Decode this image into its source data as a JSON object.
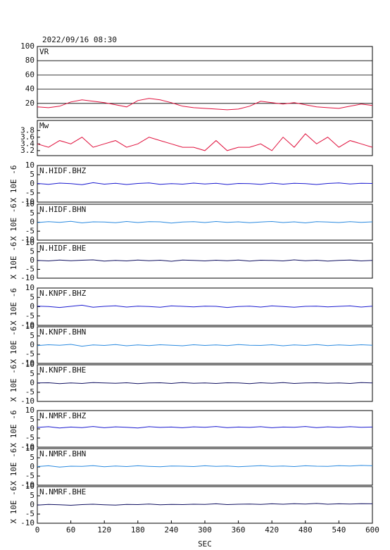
{
  "chart_data": [
    {
      "type": "line",
      "title": "2022/09/16 08:30",
      "xlim": [
        0,
        600
      ],
      "ylim": [
        0,
        100
      ],
      "yticks": [
        20,
        40,
        60,
        80,
        100
      ],
      "grid": true,
      "x": [
        0,
        20,
        40,
        60,
        80,
        100,
        120,
        140,
        160,
        180,
        200,
        220,
        240,
        260,
        280,
        300,
        320,
        340,
        360,
        380,
        400,
        420,
        440,
        460,
        480,
        500,
        520,
        540,
        560,
        580,
        600
      ],
      "series": [
        {
          "name": "VR",
          "color": "#e0103c",
          "values": [
            15,
            14,
            16,
            22,
            25,
            23,
            21,
            18,
            15,
            24,
            27,
            25,
            21,
            16,
            14,
            13,
            12,
            11,
            12,
            16,
            23,
            21,
            19,
            21,
            18,
            15,
            14,
            13,
            16,
            19,
            17
          ]
        }
      ]
    },
    {
      "type": "line",
      "xlim": [
        0,
        600
      ],
      "ylim": [
        3.05,
        4.1
      ],
      "yticks": [
        3.2,
        3.4,
        3.6,
        3.8
      ],
      "x": [
        0,
        20,
        40,
        60,
        80,
        100,
        120,
        140,
        160,
        180,
        200,
        220,
        240,
        260,
        280,
        300,
        320,
        340,
        360,
        380,
        400,
        420,
        440,
        460,
        480,
        500,
        520,
        540,
        560,
        580,
        600
      ],
      "series": [
        {
          "name": "Mw",
          "color": "#e0103c",
          "values": [
            3.4,
            3.3,
            3.5,
            3.4,
            3.6,
            3.3,
            3.4,
            3.5,
            3.3,
            3.4,
            3.6,
            3.5,
            3.4,
            3.3,
            3.3,
            3.2,
            3.5,
            3.2,
            3.3,
            3.3,
            3.4,
            3.2,
            3.6,
            3.3,
            3.7,
            3.4,
            3.6,
            3.3,
            3.5,
            3.4,
            3.3
          ]
        }
      ]
    },
    {
      "type": "line",
      "ylabel": "X 10E -6",
      "xlim": [
        0,
        600
      ],
      "ylim": [
        -10,
        10
      ],
      "yticks": [
        -10,
        -5,
        0,
        5,
        10
      ],
      "x": [
        0,
        20,
        40,
        60,
        80,
        100,
        120,
        140,
        160,
        180,
        200,
        220,
        240,
        260,
        280,
        300,
        320,
        340,
        360,
        380,
        400,
        420,
        440,
        460,
        480,
        500,
        520,
        540,
        560,
        580,
        600
      ],
      "series": [
        {
          "name": "N.HIDF.BHZ",
          "color": "#1a1ad0",
          "values": [
            0.2,
            -0.3,
            0.4,
            0.1,
            -0.5,
            0.6,
            -0.2,
            0.3,
            -0.4,
            0.2,
            0.5,
            -0.3,
            0.1,
            -0.2,
            0.4,
            -0.1,
            0.3,
            -0.4,
            0.2,
            0.1,
            -0.3,
            0.4,
            -0.2,
            0.3,
            0.1,
            -0.4,
            0.2,
            0.5,
            -0.1,
            0.3,
            0.2
          ]
        }
      ]
    },
    {
      "type": "line",
      "ylabel": "X 10E -6",
      "xlim": [
        0,
        600
      ],
      "ylim": [
        -10,
        10
      ],
      "yticks": [
        -10,
        -5,
        0,
        5,
        10
      ],
      "x": [
        0,
        20,
        40,
        60,
        80,
        100,
        120,
        140,
        160,
        180,
        200,
        220,
        240,
        260,
        280,
        300,
        320,
        340,
        360,
        380,
        400,
        420,
        440,
        460,
        480,
        500,
        520,
        540,
        560,
        580,
        600
      ],
      "series": [
        {
          "name": "N.HIDF.BHN",
          "color": "#2a8ae0",
          "values": [
            -0.2,
            0.3,
            -0.1,
            0.5,
            -0.4,
            0.2,
            0.1,
            -0.3,
            0.4,
            -0.2,
            0.3,
            0.2,
            -0.5,
            0.1,
            0.3,
            -0.2,
            0.4,
            -0.1,
            0.2,
            -0.3,
            0.1,
            0.4,
            -0.2,
            0.2,
            -0.4,
            0.3,
            0.1,
            -0.2,
            0.3,
            -0.1,
            0.2
          ]
        }
      ]
    },
    {
      "type": "line",
      "ylabel": "X 10E -6",
      "xlim": [
        0,
        600
      ],
      "ylim": [
        -10,
        10
      ],
      "yticks": [
        -10,
        -5,
        0,
        5,
        10
      ],
      "x": [
        0,
        20,
        40,
        60,
        80,
        100,
        120,
        140,
        160,
        180,
        200,
        220,
        240,
        260,
        280,
        300,
        320,
        340,
        360,
        380,
        400,
        420,
        440,
        460,
        480,
        500,
        520,
        540,
        560,
        580,
        600
      ],
      "series": [
        {
          "name": "N.HIDF.BHE",
          "color": "#101060",
          "values": [
            0.1,
            -0.2,
            0.3,
            -0.1,
            0.2,
            0.4,
            -0.3,
            0.1,
            -0.2,
            0.3,
            -0.1,
            0.2,
            -0.4,
            0.3,
            0.1,
            -0.2,
            0.2,
            -0.1,
            0.3,
            -0.3,
            0.2,
            0.1,
            -0.2,
            0.4,
            -0.1,
            0.2,
            -0.3,
            0.1,
            0.3,
            -0.2,
            0.1
          ]
        }
      ]
    },
    {
      "type": "line",
      "ylabel": "X 10E -6",
      "xlim": [
        0,
        600
      ],
      "ylim": [
        -10,
        10
      ],
      "yticks": [
        -10,
        -5,
        0,
        5,
        10
      ],
      "x": [
        0,
        20,
        40,
        60,
        80,
        100,
        120,
        140,
        160,
        180,
        200,
        220,
        240,
        260,
        280,
        300,
        320,
        340,
        360,
        380,
        400,
        420,
        440,
        460,
        480,
        500,
        520,
        540,
        560,
        580,
        600
      ],
      "series": [
        {
          "name": "N.KNPF.BHZ",
          "color": "#1a1ad0",
          "values": [
            0.3,
            0.1,
            -0.4,
            0.2,
            0.8,
            -0.3,
            0.2,
            0.5,
            -0.2,
            0.3,
            0.1,
            -0.3,
            0.4,
            0.2,
            -0.1,
            0.3,
            0.2,
            -0.4,
            0.1,
            0.3,
            -0.2,
            0.4,
            0.1,
            -0.3,
            0.2,
            0.3,
            -0.1,
            0.2,
            0.4,
            -0.2,
            0.3
          ]
        }
      ]
    },
    {
      "type": "line",
      "ylabel": "X 10E -6",
      "xlim": [
        0,
        600
      ],
      "ylim": [
        -10,
        10
      ],
      "yticks": [
        -10,
        -5,
        0,
        5,
        10
      ],
      "x": [
        0,
        20,
        40,
        60,
        80,
        100,
        120,
        140,
        160,
        180,
        200,
        220,
        240,
        260,
        280,
        300,
        320,
        340,
        360,
        380,
        400,
        420,
        440,
        460,
        480,
        500,
        520,
        540,
        560,
        580,
        600
      ],
      "series": [
        {
          "name": "N.KNPF.BHN",
          "color": "#2a8ae0",
          "values": [
            -0.3,
            0.2,
            -0.1,
            0.4,
            -0.6,
            0.1,
            -0.2,
            0.3,
            -0.4,
            0.1,
            -0.3,
            0.2,
            -0.1,
            -0.4,
            0.2,
            -0.2,
            0.1,
            -0.3,
            0.3,
            -0.1,
            -0.2,
            0.2,
            -0.4,
            0.1,
            -0.2,
            0.3,
            -0.3,
            0.1,
            -0.2,
            0.2,
            -0.1
          ]
        }
      ]
    },
    {
      "type": "line",
      "ylabel": "X 10E -6",
      "xlim": [
        0,
        600
      ],
      "ylim": [
        -10,
        10
      ],
      "yticks": [
        -10,
        -5,
        0,
        5,
        10
      ],
      "x": [
        0,
        20,
        40,
        60,
        80,
        100,
        120,
        140,
        160,
        180,
        200,
        220,
        240,
        260,
        280,
        300,
        320,
        340,
        360,
        380,
        400,
        420,
        440,
        460,
        480,
        500,
        520,
        540,
        560,
        580,
        600
      ],
      "series": [
        {
          "name": "N.KNPF.BHE",
          "color": "#101060",
          "values": [
            0.1,
            0.2,
            -0.3,
            0.1,
            -0.2,
            0.3,
            0.1,
            -0.1,
            0.2,
            -0.3,
            0.1,
            0.2,
            -0.2,
            0.3,
            -0.1,
            0.1,
            -0.2,
            0.2,
            0.1,
            -0.3,
            0.2,
            -0.1,
            0.3,
            -0.2,
            0.1,
            0.2,
            -0.1,
            0.1,
            -0.2,
            0.3,
            0.1
          ]
        }
      ]
    },
    {
      "type": "line",
      "ylabel": "X 10E -6",
      "xlim": [
        0,
        600
      ],
      "ylim": [
        -10,
        10
      ],
      "yticks": [
        -10,
        -5,
        0,
        5,
        10
      ],
      "x": [
        0,
        20,
        40,
        60,
        80,
        100,
        120,
        140,
        160,
        180,
        200,
        220,
        240,
        260,
        280,
        300,
        320,
        340,
        360,
        380,
        400,
        420,
        440,
        460,
        480,
        500,
        520,
        540,
        560,
        580,
        600
      ],
      "series": [
        {
          "name": "N.NMRF.BHZ",
          "color": "#1a1ad0",
          "values": [
            0.8,
            1.2,
            0.5,
            1.0,
            0.7,
            1.3,
            0.6,
            1.1,
            0.9,
            0.5,
            1.2,
            0.8,
            1.0,
            0.6,
            1.1,
            0.9,
            1.3,
            0.7,
            1.0,
            0.8,
            1.2,
            0.6,
            1.0,
            0.9,
            1.3,
            0.7,
            1.1,
            0.8,
            1.2,
            0.9,
            1.0
          ]
        }
      ]
    },
    {
      "type": "line",
      "ylabel": "X 10E -6",
      "xlim": [
        0,
        600
      ],
      "ylim": [
        -10,
        10
      ],
      "yticks": [
        -10,
        -5,
        0,
        5,
        10
      ],
      "x": [
        0,
        20,
        40,
        60,
        80,
        100,
        120,
        140,
        160,
        180,
        200,
        220,
        240,
        260,
        280,
        300,
        320,
        340,
        360,
        380,
        400,
        420,
        440,
        460,
        480,
        500,
        520,
        540,
        560,
        580,
        600
      ],
      "series": [
        {
          "name": "N.NMRF.BHN",
          "color": "#2a8ae0",
          "values": [
            0.2,
            0.6,
            -0.1,
            0.4,
            0.3,
            0.7,
            0.1,
            0.5,
            0.2,
            0.6,
            0.3,
            0.1,
            0.5,
            0.4,
            0.2,
            0.6,
            0.3,
            0.5,
            0.1,
            0.4,
            0.7,
            0.3,
            0.5,
            0.2,
            0.6,
            0.4,
            0.3,
            0.7,
            0.5,
            0.8,
            0.6
          ]
        }
      ]
    },
    {
      "type": "line",
      "ylabel": "X 10E -6",
      "xlabel": "SEC",
      "xlim": [
        0,
        600
      ],
      "ylim": [
        -10,
        10
      ],
      "yticks": [
        -10,
        -5,
        0,
        5,
        10
      ],
      "xticks": [
        0,
        60,
        120,
        180,
        240,
        300,
        360,
        420,
        480,
        540,
        600
      ],
      "x": [
        0,
        20,
        40,
        60,
        80,
        100,
        120,
        140,
        160,
        180,
        200,
        220,
        240,
        260,
        280,
        300,
        320,
        340,
        360,
        380,
        400,
        420,
        440,
        460,
        480,
        500,
        520,
        540,
        560,
        580,
        600
      ],
      "series": [
        {
          "name": "N.NMRF.BHE",
          "color": "#101060",
          "values": [
            -0.1,
            0.3,
            0.1,
            -0.2,
            0.2,
            0.4,
            0.1,
            -0.1,
            0.3,
            0.2,
            0.5,
            0.1,
            0.3,
            0.2,
            0.4,
            0.3,
            0.6,
            0.2,
            0.4,
            0.5,
            0.3,
            0.6,
            0.4,
            0.7,
            0.5,
            0.8,
            0.4,
            0.6,
            0.5,
            0.7,
            0.6
          ]
        }
      ]
    }
  ]
}
